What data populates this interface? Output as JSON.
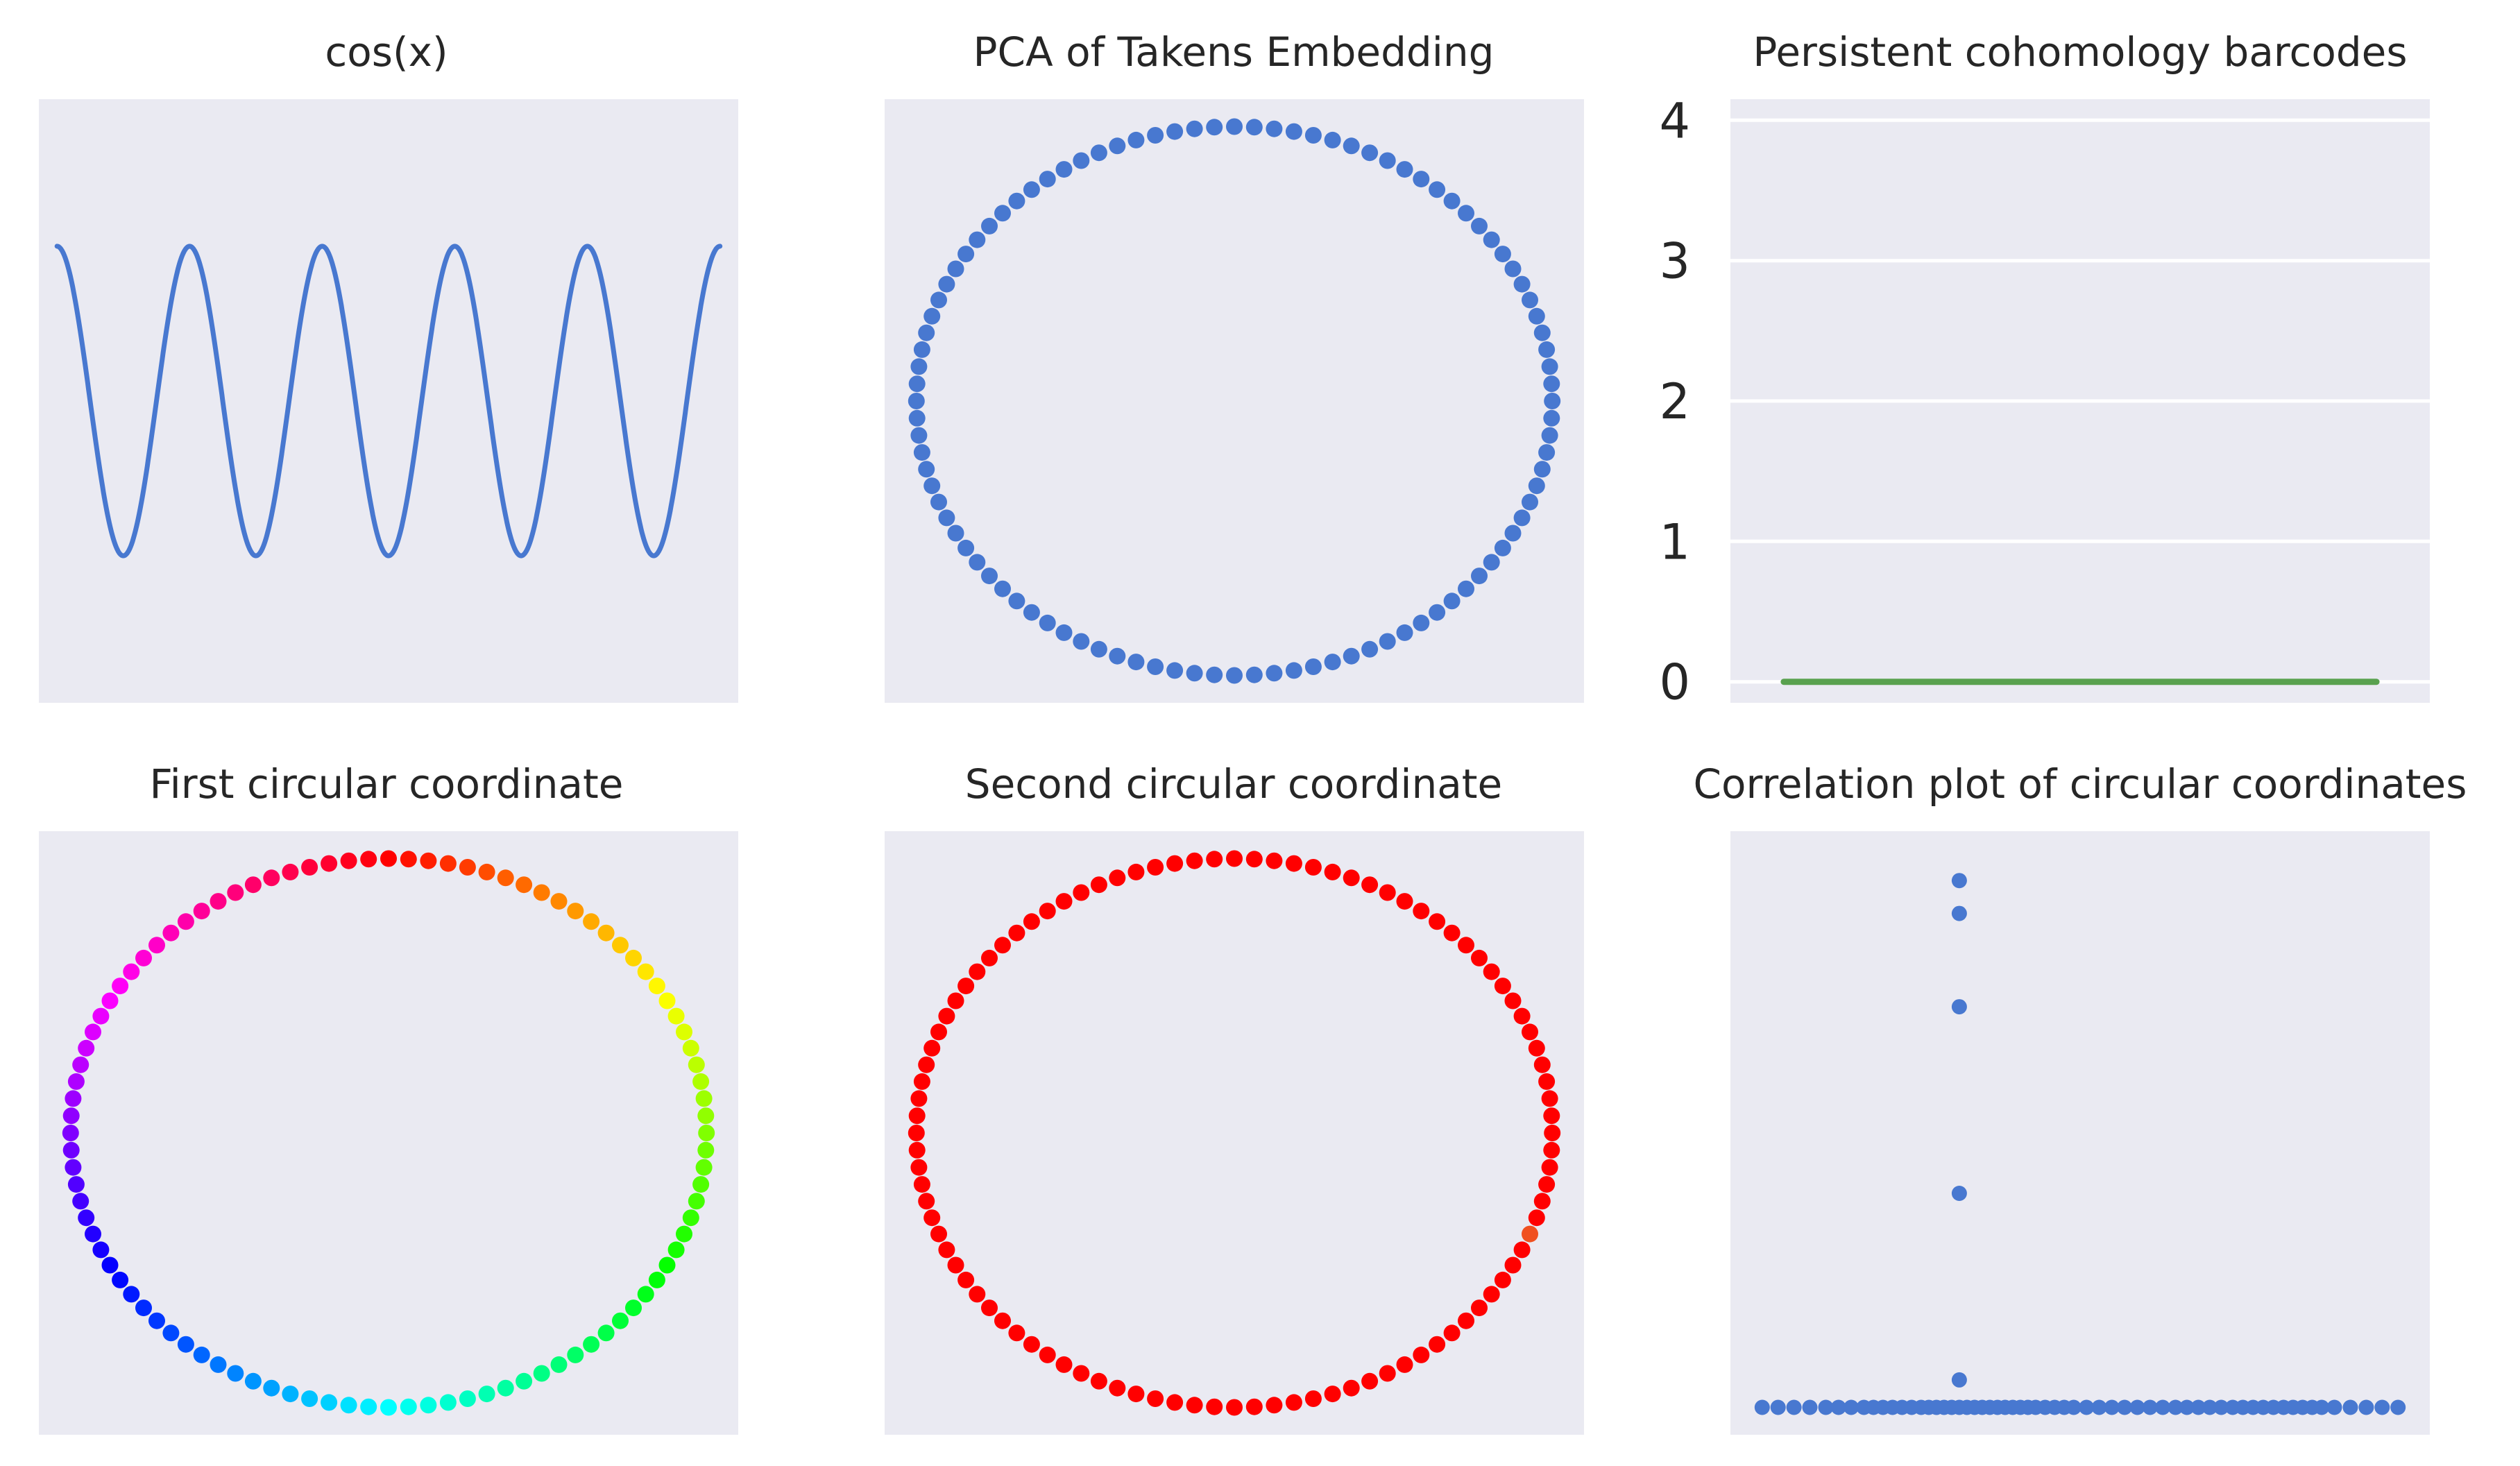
{
  "figure": {
    "background": "#ffffff",
    "axes_facecolor": "#eaeaf2",
    "grid_color": "#ffffff"
  },
  "chart_data": [
    {
      "id": "cos",
      "type": "line",
      "title": "cos(x)",
      "x_range": [
        0,
        31.416
      ],
      "ylim": [
        -1.95,
        1.95
      ],
      "xlim": [
        -0.86,
        32.28
      ],
      "series": [
        {
          "function": "cos",
          "color": "#4878d0"
        }
      ],
      "xticks": [],
      "yticks": [],
      "grid": false
    },
    {
      "id": "pca",
      "type": "scatter",
      "title": "PCA of Takens Embedding",
      "points": {
        "shape": "circle",
        "count": 100,
        "center": [
          0,
          0
        ],
        "radius": 1
      },
      "xlim": [
        -1.1,
        1.1
      ],
      "ylim": [
        -1.1,
        1.1
      ],
      "color": "#4878d0",
      "xticks": [],
      "yticks": [],
      "grid": false
    },
    {
      "id": "barcode",
      "type": "bar",
      "title": "Persistent cohomology barcodes",
      "bars": [
        {
          "birth": 0.0,
          "death": 1.0,
          "y": 0,
          "color": "#59a14f"
        }
      ],
      "xlim": [
        -0.09,
        1.09
      ],
      "ylim": [
        -0.15,
        4.15
      ],
      "yticks": [
        0,
        1,
        2,
        3,
        4
      ],
      "ytick_labels": [
        "0",
        "1",
        "2",
        "3",
        "4"
      ],
      "xticks": [],
      "grid": true
    },
    {
      "id": "first_circ",
      "type": "scatter",
      "title": "First circular coordinate",
      "points": {
        "shape": "circle",
        "count": 100,
        "center": [
          0,
          0
        ],
        "radius": 1
      },
      "colormap": "hsv",
      "xlim": [
        -1.1,
        1.1
      ],
      "ylim": [
        -1.1,
        1.1
      ],
      "xticks": [],
      "yticks": [],
      "grid": false
    },
    {
      "id": "second_circ",
      "type": "scatter",
      "title": "Second circular coordinate",
      "points": {
        "shape": "circle",
        "count": 100,
        "center": [
          0,
          0
        ],
        "radius": 1
      },
      "color": "#ff0000",
      "highlight": {
        "index_from_right": 6,
        "color": "#f05020"
      },
      "xlim": [
        -1.1,
        1.1
      ],
      "ylim": [
        -1.1,
        1.1
      ],
      "xticks": [],
      "yticks": [],
      "grid": false
    },
    {
      "id": "correlation",
      "type": "scatter",
      "title": "Correlation plot of circular coordinates",
      "color": "#4878d0",
      "xlim": [
        -0.05,
        1.05
      ],
      "ylim": [
        -0.05,
        1.05
      ],
      "x_baseline": [
        0.0,
        0.025,
        0.05,
        0.075,
        0.1,
        0.12,
        0.14,
        0.16,
        0.175,
        0.19,
        0.205,
        0.22,
        0.235,
        0.25,
        0.262,
        0.274,
        0.286,
        0.298,
        0.31,
        0.322,
        0.334,
        0.346,
        0.358,
        0.37,
        0.382,
        0.394,
        0.406,
        0.418,
        0.43,
        0.445,
        0.46,
        0.475,
        0.49,
        0.51,
        0.53,
        0.55,
        0.57,
        0.59,
        0.61,
        0.63,
        0.65,
        0.668,
        0.686,
        0.704,
        0.722,
        0.74,
        0.756,
        0.772,
        0.788,
        0.804,
        0.82,
        0.835,
        0.85,
        0.865,
        0.88,
        0.9,
        0.925,
        0.95,
        0.975,
        1.0
      ],
      "vertical_points": {
        "x": 0.31,
        "y": [
          0.05,
          0.39,
          0.73,
          0.9,
          0.96
        ]
      },
      "xticks": [],
      "yticks": [],
      "grid": false
    }
  ]
}
